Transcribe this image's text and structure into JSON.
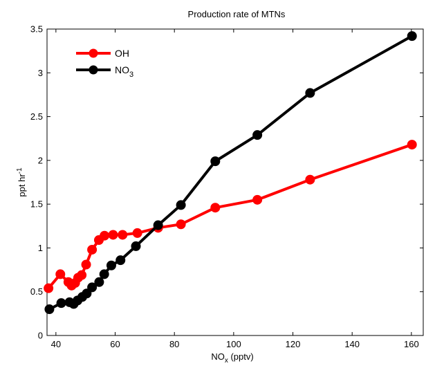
{
  "chart_data": {
    "type": "line",
    "title": "Production rate of MTNs",
    "xlabel": {
      "main": "NO",
      "sub": "x",
      "rest": " (pptv)"
    },
    "ylabel": {
      "main": "ppt hr",
      "sup": "-1"
    },
    "xlim": [
      37,
      164
    ],
    "ylim": [
      0,
      3.5
    ],
    "xticks": [
      40,
      60,
      80,
      100,
      120,
      140,
      160
    ],
    "yticks": [
      0,
      0.5,
      1,
      1.5,
      2,
      2.5,
      3,
      3.5
    ],
    "xtick_labels": [
      "40",
      "60",
      "80",
      "100",
      "120",
      "140",
      "160"
    ],
    "ytick_labels": [
      "0",
      "0.5",
      "1",
      "1.5",
      "2",
      "2.5",
      "3",
      "3.5"
    ],
    "grid": false,
    "legend_position": "top-left",
    "series": [
      {
        "name": "OH",
        "name_sub": "",
        "color": "#ff0000",
        "marker": "circle",
        "x": [
          37.5,
          41.5,
          44.2,
          45.3,
          46.5,
          47.5,
          48.7,
          50.2,
          52.2,
          54.5,
          56.4,
          59.3,
          62.5,
          67.5,
          74.5,
          82.2,
          93.8,
          108.0,
          125.8,
          160.2
        ],
        "y": [
          0.54,
          0.7,
          0.61,
          0.57,
          0.6,
          0.66,
          0.69,
          0.81,
          0.98,
          1.09,
          1.14,
          1.15,
          1.15,
          1.17,
          1.23,
          1.27,
          1.46,
          1.55,
          1.78,
          2.18
        ]
      },
      {
        "name": "NO",
        "name_sub": "3",
        "color": "#000000",
        "marker": "circle",
        "x": [
          37.8,
          41.8,
          44.6,
          46.0,
          47.3,
          48.9,
          50.4,
          52.2,
          54.6,
          56.3,
          58.7,
          61.8,
          67.0,
          74.5,
          82.2,
          93.8,
          108.0,
          125.8,
          160.2
        ],
        "y": [
          0.3,
          0.37,
          0.38,
          0.36,
          0.4,
          0.44,
          0.48,
          0.55,
          0.61,
          0.7,
          0.8,
          0.86,
          1.02,
          1.26,
          1.49,
          1.99,
          2.29,
          2.77,
          3.42
        ]
      }
    ]
  }
}
